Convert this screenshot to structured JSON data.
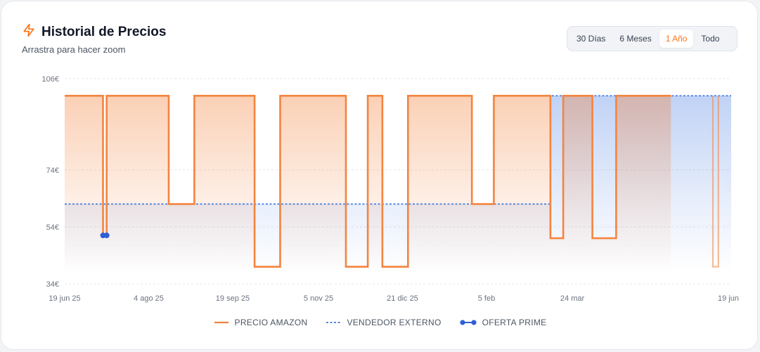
{
  "header": {
    "title": "Historial de Precios",
    "subtitle": "Arrastra para hacer zoom",
    "icon": "lightning-icon"
  },
  "range_buttons": [
    "30 Días",
    "6 Meses",
    "1 Año",
    "Todo"
  ],
  "active_range": "1 Año",
  "colors": {
    "amazon": "#f4843f",
    "external": "#3b74e0",
    "prime": "#2f5fd6",
    "active_tab": "#f97316"
  },
  "legend": {
    "amazon": "PRECIO AMAZON",
    "external": "VENDEDOR EXTERNO",
    "prime": "OFERTA PRIME"
  },
  "chart_data": {
    "type": "line",
    "title": "Historial de Precios",
    "ylim": [
      34,
      106
    ],
    "y_ticks": [
      "106€",
      "74€",
      "54€",
      "34€"
    ],
    "y_tick_values": [
      106,
      74,
      54,
      34
    ],
    "x_ticks": [
      "19 jun 25",
      "4 ago 25",
      "19 sep 25",
      "5 nov 25",
      "21 dic 25",
      "5 feb",
      "24 mar",
      "19 jun"
    ],
    "x_tick_dates": [
      "2025-06-19",
      "2025-08-04",
      "2025-09-19",
      "2025-11-05",
      "2025-12-21",
      "2026-02-05",
      "2026-03-24",
      "2026-06-19"
    ],
    "x_range": [
      "2025-06-19",
      "2026-06-19"
    ],
    "grid": true,
    "legend_position": "bottom",
    "series": [
      {
        "name": "PRECIO AMAZON",
        "style": "step",
        "points": [
          [
            "2025-06-19",
            100
          ],
          [
            "2025-07-10",
            100
          ],
          [
            "2025-07-10",
            51
          ],
          [
            "2025-07-12",
            51
          ],
          [
            "2025-07-12",
            100
          ],
          [
            "2025-08-15",
            100
          ],
          [
            "2025-08-15",
            62
          ],
          [
            "2025-08-29",
            62
          ],
          [
            "2025-08-29",
            100
          ],
          [
            "2025-10-01",
            100
          ],
          [
            "2025-10-01",
            40
          ],
          [
            "2025-10-15",
            40
          ],
          [
            "2025-10-15",
            100
          ],
          [
            "2025-11-20",
            100
          ],
          [
            "2025-11-20",
            40
          ],
          [
            "2025-12-02",
            40
          ],
          [
            "2025-12-02",
            100
          ],
          [
            "2025-12-10",
            100
          ],
          [
            "2025-12-10",
            40
          ],
          [
            "2025-12-24",
            40
          ],
          [
            "2025-12-24",
            100
          ],
          [
            "2026-01-28",
            100
          ],
          [
            "2026-01-28",
            62
          ],
          [
            "2026-02-09",
            62
          ],
          [
            "2026-02-09",
            100
          ],
          [
            "2026-03-12",
            100
          ],
          [
            "2026-03-12",
            50
          ],
          [
            "2026-03-19",
            50
          ],
          [
            "2026-03-19",
            100
          ],
          [
            "2026-04-04",
            100
          ],
          [
            "2026-04-04",
            50
          ],
          [
            "2026-04-17",
            50
          ],
          [
            "2026-04-17",
            100
          ],
          [
            "2026-05-17",
            100
          ]
        ],
        "extra_segments": [
          [
            [
              "2026-06-09",
              100
            ],
            [
              "2026-06-09",
              40
            ],
            [
              "2026-06-12",
              40
            ],
            [
              "2026-06-12",
              100
            ]
          ]
        ]
      },
      {
        "name": "VENDEDOR EXTERNO",
        "style": "step-dashed",
        "points": [
          [
            "2025-06-19",
            62
          ],
          [
            "2026-03-12",
            62
          ],
          [
            "2026-03-12",
            100
          ],
          [
            "2026-06-19",
            100
          ]
        ]
      },
      {
        "name": "OFERTA PRIME",
        "style": "marker",
        "points": [
          [
            "2025-07-10",
            51
          ],
          [
            "2025-07-12",
            51
          ]
        ]
      }
    ]
  }
}
